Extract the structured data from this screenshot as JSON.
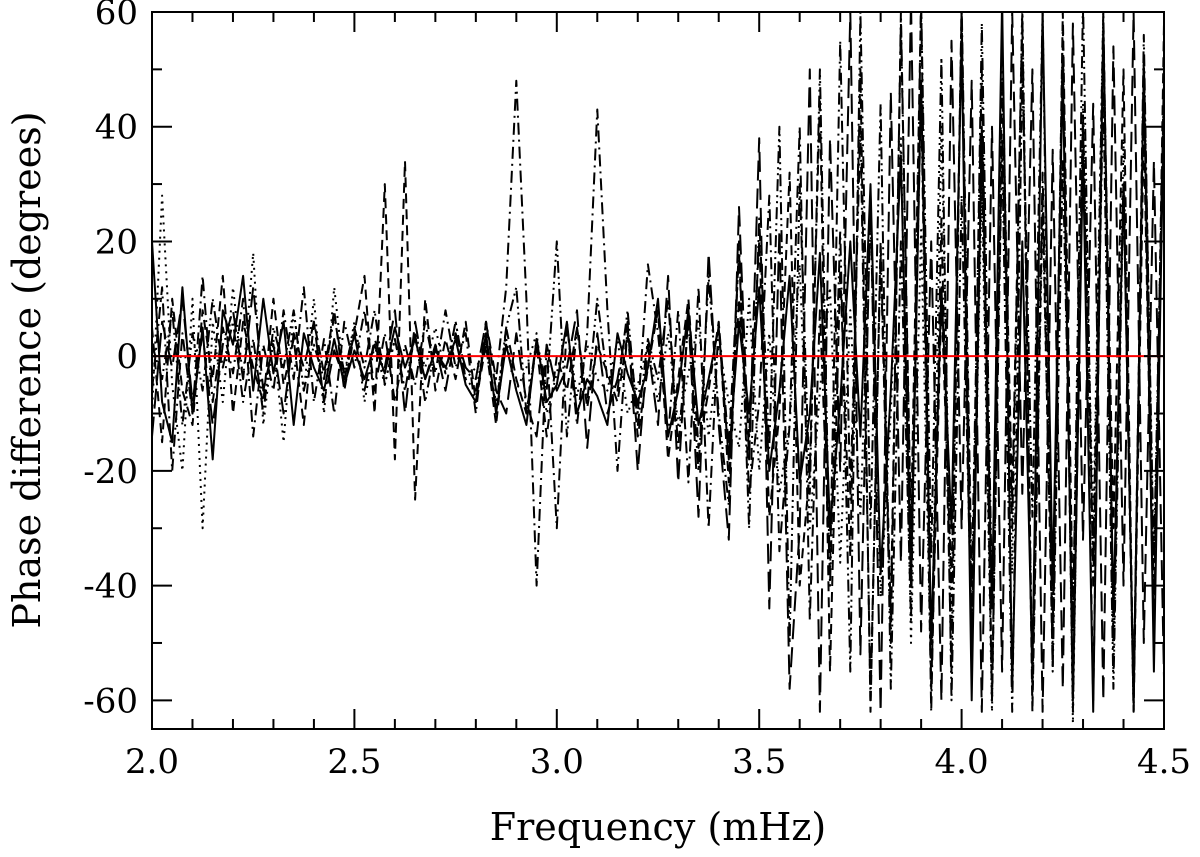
{
  "chart_data": {
    "type": "line",
    "title": "",
    "xlabel": "Frequency (mHz)",
    "ylabel": "Phase difference (degrees)",
    "xlim": [
      2.0,
      4.5
    ],
    "ylim": [
      -65,
      60
    ],
    "x_ticks": [
      2.0,
      2.5,
      3.0,
      3.5,
      4.0,
      4.5
    ],
    "x_tick_labels": [
      "2.0",
      "2.5",
      "3.0",
      "3.5",
      "4.0",
      "4.5"
    ],
    "y_ticks": [
      -60,
      -40,
      -20,
      0,
      20,
      40,
      60
    ],
    "y_tick_labels": [
      "-60",
      "-40",
      "-20",
      "0",
      "20",
      "40",
      "60"
    ],
    "grid": false,
    "legend": "none",
    "reference_line": {
      "y": 0,
      "color": "#ff0000"
    },
    "line_color": "#000000",
    "series_note_x": [
      2.0,
      2.025,
      2.05,
      2.075,
      2.1,
      2.125,
      2.15,
      2.175,
      2.2,
      2.225,
      2.25,
      2.275,
      2.3,
      2.325,
      2.35,
      2.375,
      2.4,
      2.425,
      2.45,
      2.475,
      2.5,
      2.525,
      2.55,
      2.575,
      2.6,
      2.625,
      2.65,
      2.675,
      2.7,
      2.725,
      2.75,
      2.775,
      2.8,
      2.825,
      2.85,
      2.875,
      2.9,
      2.925,
      2.95,
      2.975,
      3.0,
      3.025,
      3.05,
      3.075,
      3.1,
      3.125,
      3.15,
      3.175,
      3.2,
      3.225,
      3.25,
      3.275,
      3.3,
      3.325,
      3.35,
      3.375,
      3.4,
      3.425,
      3.45,
      3.475,
      3.5,
      3.525,
      3.55,
      3.575,
      3.6,
      3.625,
      3.65,
      3.675,
      3.7,
      3.725,
      3.75,
      3.775,
      3.8,
      3.825,
      3.85,
      3.875,
      3.9,
      3.925,
      3.95,
      3.975,
      4.0,
      4.025,
      4.05,
      4.075,
      4.1,
      4.125,
      4.15,
      4.175,
      4.2,
      4.225,
      4.25,
      4.275,
      4.3,
      4.325,
      4.35,
      4.375,
      4.4,
      4.425,
      4.45,
      4.475,
      4.5
    ],
    "series": [
      {
        "style": "solid",
        "values": [
          20,
          -8,
          -15,
          12,
          -10,
          5,
          -18,
          8,
          2,
          14,
          -6,
          10,
          -3,
          6,
          -12,
          4,
          -2,
          -6,
          3,
          -5,
          1,
          -4,
          2,
          -3,
          5,
          -2,
          3,
          -4,
          1,
          -2,
          3,
          -5,
          -8,
          4,
          -10,
          2,
          -6,
          -12,
          3,
          -8,
          -5,
          6,
          -10,
          -4,
          -7,
          -12,
          4,
          -3,
          -8,
          -2,
          10,
          -14,
          -6,
          8,
          -12,
          -4,
          5,
          -18,
          6,
          -10,
          12,
          -20,
          -6,
          14,
          -22,
          -10,
          18,
          -30,
          -8,
          20,
          -14,
          30,
          -38,
          -6,
          35,
          -40,
          48,
          -50,
          12,
          -30,
          55,
          -60,
          40,
          -44,
          62,
          -58,
          20,
          -55,
          60,
          -40,
          50,
          -60,
          35,
          -62,
          58,
          -45,
          30,
          -60,
          50,
          -55,
          45
        ]
      },
      {
        "style": "dotted",
        "values": [
          -10,
          28,
          -5,
          -20,
          10,
          -30,
          6,
          -8,
          12,
          -4,
          18,
          -12,
          3,
          -15,
          8,
          -6,
          10,
          -10,
          12,
          -4,
          6,
          -8,
          2,
          -5,
          3,
          -6,
          4,
          -2,
          5,
          -3,
          6,
          -4,
          -2,
          1,
          -8,
          3,
          -6,
          -2,
          4,
          -10,
          -3,
          5,
          -7,
          2,
          -4,
          -6,
          3,
          -10,
          -5,
          2,
          -8,
          4,
          -12,
          -3,
          6,
          -14,
          2,
          -8,
          -16,
          10,
          -20,
          4,
          -24,
          -12,
          16,
          -30,
          -6,
          12,
          -36,
          8,
          -28,
          24,
          -42,
          -10,
          38,
          -50,
          22,
          -58,
          40,
          -46,
          60,
          -52,
          30,
          -62,
          55,
          -38,
          62,
          -60,
          25,
          -50,
          58,
          -64,
          44,
          -30,
          60,
          -55,
          38,
          -62,
          52,
          -40,
          48
        ]
      },
      {
        "style": "dashed",
        "values": [
          5,
          -15,
          10,
          -6,
          -12,
          8,
          -4,
          14,
          -10,
          6,
          -2,
          -8,
          10,
          -5,
          3,
          -12,
          6,
          -3,
          8,
          -6,
          4,
          14,
          -10,
          30,
          -18,
          34,
          -25,
          10,
          -6,
          3,
          -4,
          6,
          -8,
          2,
          -12,
          5,
          -4,
          -10,
          2,
          -14,
          0,
          -6,
          5,
          -9,
          2,
          -3,
          -8,
          4,
          -14,
          -2,
          8,
          -18,
          -4,
          10,
          -16,
          -6,
          6,
          -22,
          10,
          -14,
          20,
          -28,
          -10,
          32,
          -40,
          -20,
          45,
          -55,
          15,
          -35,
          50,
          -62,
          20,
          -45,
          58,
          -30,
          62,
          -58,
          10,
          -40,
          60,
          -48,
          36,
          -60,
          48,
          -25,
          58,
          -62,
          28,
          -54,
          60,
          -45,
          42,
          -60,
          55,
          -30,
          50,
          -62,
          40,
          -50,
          58
        ]
      },
      {
        "style": "dashdot",
        "values": [
          -6,
          12,
          -20,
          4,
          -10,
          14,
          -8,
          5,
          -3,
          10,
          -14,
          2,
          -6,
          8,
          -4,
          12,
          -8,
          3,
          -10,
          6,
          -2,
          8,
          -6,
          4,
          -8,
          2,
          -5,
          6,
          -3,
          8,
          -2,
          4,
          -10,
          6,
          -4,
          12,
          48,
          10,
          -40,
          2,
          -30,
          6,
          -12,
          4,
          43,
          8,
          -20,
          5,
          -10,
          16,
          4,
          -14,
          8,
          -22,
          12,
          -30,
          6,
          -16,
          18,
          -24,
          -8,
          28,
          -34,
          -12,
          40,
          -46,
          8,
          -38,
          55,
          -25,
          40,
          -60,
          18,
          -50,
          60,
          -34,
          46,
          -62,
          24,
          -55,
          62,
          -40,
          50,
          -60,
          38,
          -30,
          60,
          -58,
          32,
          -48,
          55,
          -62,
          40,
          -36,
          60,
          -50,
          30,
          -62,
          56,
          -44,
          50
        ]
      },
      {
        "style": "dashdotdot",
        "values": [
          2,
          -4,
          8,
          -12,
          4,
          -6,
          10,
          -2,
          6,
          -8,
          3,
          -10,
          5,
          -2,
          8,
          -6,
          2,
          -4,
          7,
          -3,
          5,
          -2,
          8,
          -5,
          3,
          -6,
          4,
          -8,
          2,
          -3,
          6,
          -4,
          -6,
          3,
          -9,
          5,
          12,
          -10,
          3,
          -6,
          20,
          -14,
          5,
          -8,
          10,
          -4,
          -6,
          8,
          -12,
          3,
          -4,
          10,
          -16,
          6,
          -20,
          14,
          -10,
          -26,
          20,
          -30,
          24,
          -16,
          40,
          -50,
          30,
          -24,
          50,
          -40,
          22,
          -55,
          60,
          -30,
          44,
          -58,
          20,
          -46,
          62,
          -35,
          52,
          -60,
          28,
          -50,
          58,
          -42,
          36,
          -62,
          50,
          -28,
          60,
          -55,
          34,
          -48,
          62,
          -40,
          46,
          -58,
          30,
          -60,
          52,
          -36,
          48
        ]
      },
      {
        "style": "longdash",
        "values": [
          -14,
          6,
          -2,
          10,
          -8,
          4,
          -12,
          2,
          8,
          -4,
          12,
          -6,
          2,
          -10,
          4,
          -2,
          6,
          -8,
          1,
          -4,
          4,
          -6,
          3,
          -2,
          8,
          -10,
          6,
          -4,
          2,
          -6,
          4,
          -2,
          -4,
          6,
          -6,
          -10,
          4,
          -8,
          -14,
          2,
          -6,
          -2,
          8,
          -16,
          4,
          -10,
          -4,
          6,
          -20,
          2,
          -12,
          14,
          -22,
          8,
          -28,
          18,
          -12,
          -32,
          26,
          -18,
          38,
          -44,
          22,
          -58,
          -30,
          50,
          -62,
          38,
          -20,
          60,
          -52,
          28,
          -62,
          46,
          -36,
          62,
          -48,
          20,
          -60,
          55,
          -30,
          48,
          -62,
          40,
          -55,
          60,
          -24,
          50,
          -62,
          36,
          -58,
          58,
          -32,
          44,
          -60,
          54,
          -40,
          60,
          -50,
          34,
          -56
        ]
      }
    ]
  }
}
